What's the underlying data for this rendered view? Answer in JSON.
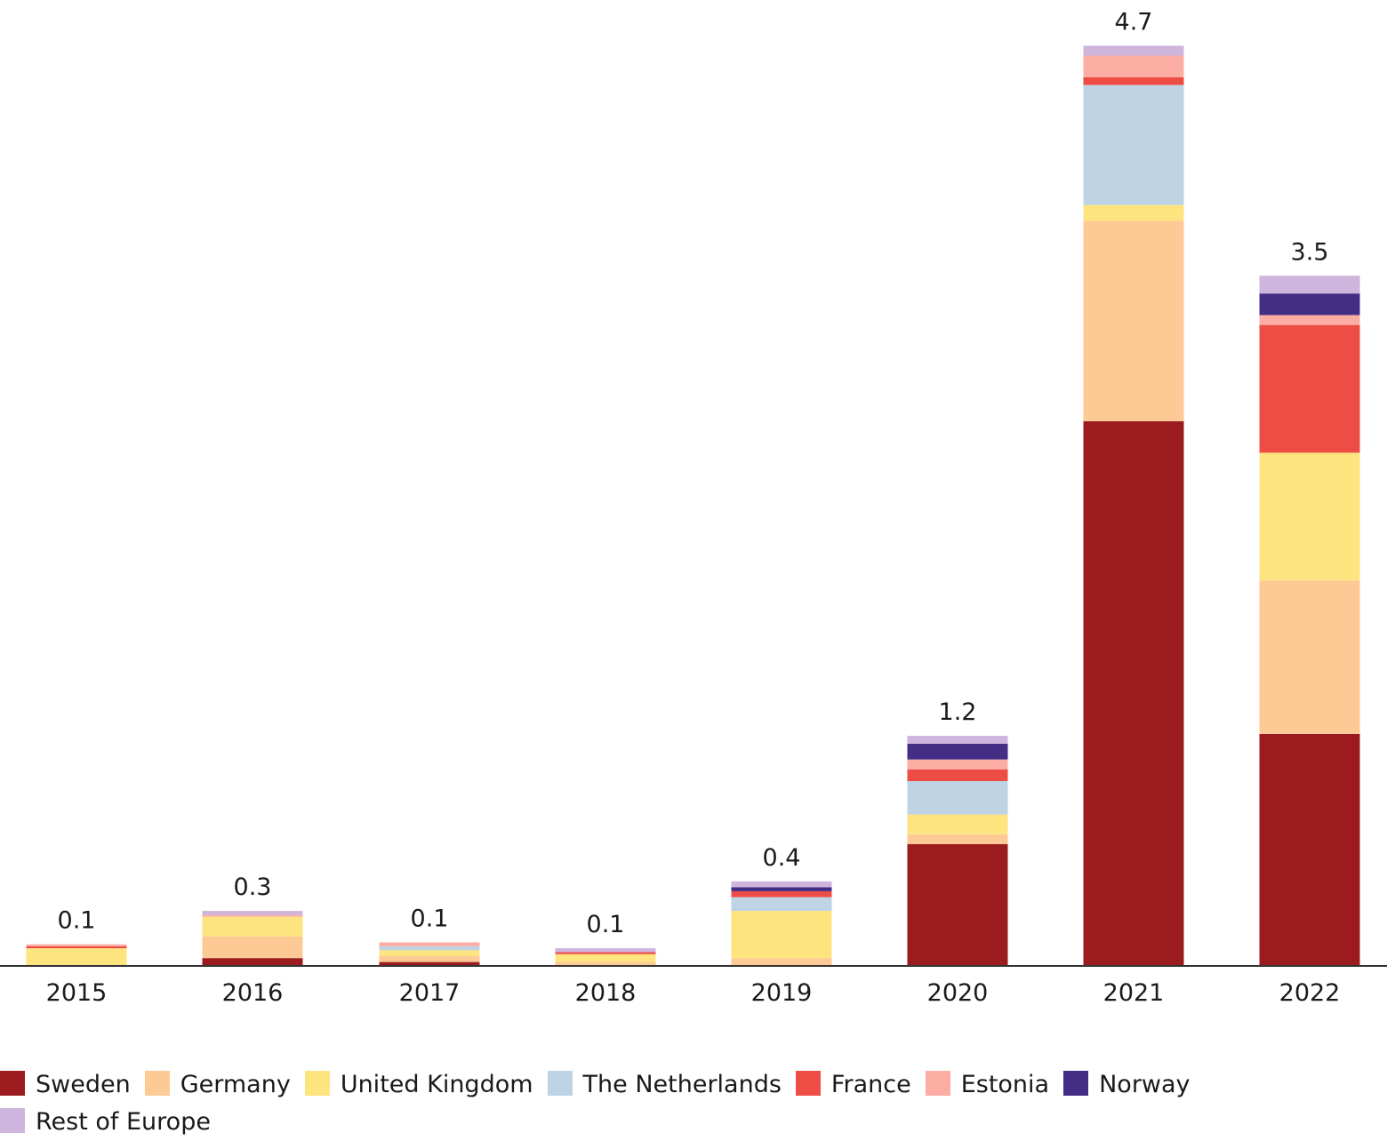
{
  "chart_data": {
    "type": "bar",
    "stacked": true,
    "categories": [
      "2015",
      "2016",
      "2017",
      "2018",
      "2019",
      "2020",
      "2021",
      "2022"
    ],
    "totals_labels": [
      "0.1",
      "0.3",
      "0.1",
      "0.1",
      "0.4",
      "1.2",
      "4.7",
      "3.5"
    ],
    "series": [
      {
        "name": "Sweden",
        "color": "#9b1b1f",
        "values": [
          0,
          0.04,
          0.02,
          0,
          0,
          0.62,
          2.77,
          1.18
        ]
      },
      {
        "name": "Germany",
        "color": "#fdca95",
        "values": [
          0,
          0.11,
          0.03,
          0.02,
          0.04,
          0.05,
          1.02,
          0.78
        ]
      },
      {
        "name": "United Kingdom",
        "color": "#fde47f",
        "values": [
          0.09,
          0.1,
          0.03,
          0.04,
          0.24,
          0.1,
          0.08,
          0.65
        ]
      },
      {
        "name": "The Netherlands",
        "color": "#bed3e3",
        "values": [
          0,
          0,
          0.02,
          0,
          0.07,
          0.17,
          0.61,
          0
        ]
      },
      {
        "name": "France",
        "color": "#ee4d46",
        "values": [
          0.01,
          0,
          0,
          0.01,
          0.03,
          0.06,
          0.04,
          0.65
        ]
      },
      {
        "name": "Estonia",
        "color": "#fcada4",
        "values": [
          0.01,
          0.01,
          0.02,
          0,
          0,
          0.05,
          0.11,
          0.05
        ]
      },
      {
        "name": "Norway",
        "color": "#432e85",
        "values": [
          0,
          0,
          0,
          0,
          0.02,
          0.08,
          0,
          0.11
        ]
      },
      {
        "name": "Rest of Europe",
        "color": "#cdb5dd",
        "values": [
          0,
          0.02,
          0,
          0.02,
          0.03,
          0.04,
          0.05,
          0.09
        ]
      }
    ],
    "ylim": [
      0,
      4.7
    ],
    "title": "",
    "xlabel": "",
    "ylabel": "",
    "legend_position": "bottom"
  }
}
